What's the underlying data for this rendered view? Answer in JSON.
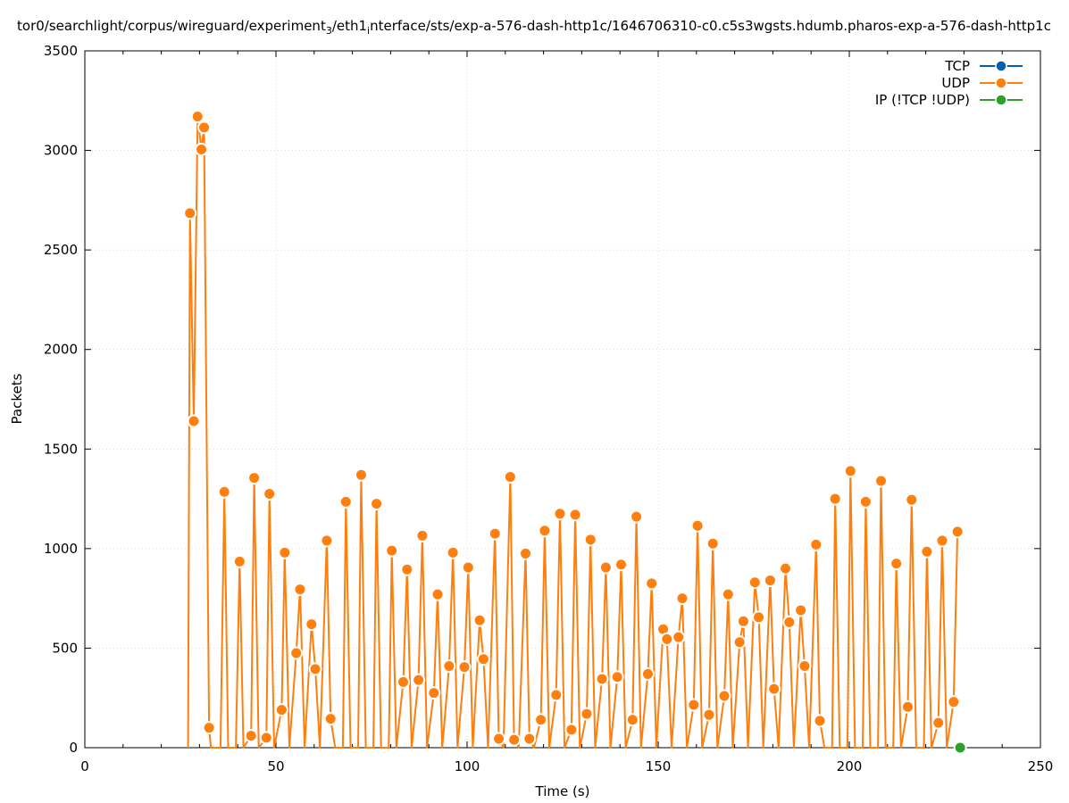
{
  "chart_data": {
    "type": "line",
    "title": "tor0/searchlight/corpus/wireguard/experiment_3/eth1_interface/sts/exp-a-576-dash-http1c/1646706310-c0.c5s3wgsts.hdumb.pharos-exp-a-576-dash-http1c",
    "title_segments": {
      "a": "tor0/searchlight/corpus/wireguard/experiment",
      "sub1": "3",
      "b": "/eth1",
      "sub2": "i",
      "c": "nterface/sts/exp-a-576-dash-http1c/1646706310-c0.c5s3wgsts.hdumb.pharos-exp-a-576-dash-http1c"
    },
    "xlabel": "Time (s)",
    "ylabel": "Packets",
    "xlim": [
      0,
      250
    ],
    "ylim": [
      0,
      3500
    ],
    "x_ticks": [
      "0",
      "50",
      "100",
      "150",
      "200",
      "250"
    ],
    "y_ticks": [
      "0",
      "500",
      "1000",
      "1500",
      "2000",
      "2500",
      "3000",
      "3500"
    ],
    "grid": true,
    "legend_position": "top-right",
    "series": [
      {
        "name": "TCP",
        "color": "#0060ad",
        "points": []
      },
      {
        "name": "UDP",
        "color": "#ff7f0e",
        "points": [
          [
            27,
            0
          ],
          [
            27.5,
            2685
          ],
          [
            28.5,
            1640
          ],
          [
            29.5,
            3170
          ],
          [
            30.5,
            3005
          ],
          [
            31.2,
            3115
          ],
          [
            32.5,
            100
          ],
          [
            33,
            0
          ],
          [
            35.5,
            0
          ],
          [
            36.5,
            1285
          ],
          [
            37.5,
            0
          ],
          [
            39.5,
            0
          ],
          [
            40.5,
            935
          ],
          [
            41.5,
            0
          ],
          [
            43.5,
            60
          ],
          [
            44.3,
            1355
          ],
          [
            45.5,
            0
          ],
          [
            47.5,
            50
          ],
          [
            48.3,
            1275
          ],
          [
            49.5,
            0
          ],
          [
            51.5,
            190
          ],
          [
            52.3,
            980
          ],
          [
            53.5,
            0
          ],
          [
            55.3,
            475
          ],
          [
            56.3,
            795
          ],
          [
            57.5,
            0
          ],
          [
            59.3,
            620
          ],
          [
            60.3,
            395
          ],
          [
            61.5,
            0
          ],
          [
            63.3,
            1040
          ],
          [
            64.3,
            145
          ],
          [
            65.5,
            0
          ],
          [
            67.5,
            0
          ],
          [
            68.3,
            1235
          ],
          [
            69.5,
            0
          ],
          [
            71.5,
            0
          ],
          [
            72.3,
            1370
          ],
          [
            73.5,
            0
          ],
          [
            75.5,
            0
          ],
          [
            76.3,
            1225
          ],
          [
            77.5,
            0
          ],
          [
            79.5,
            0
          ],
          [
            80.3,
            990
          ],
          [
            81.5,
            0
          ],
          [
            83.3,
            330
          ],
          [
            84.3,
            895
          ],
          [
            85.5,
            0
          ],
          [
            87.3,
            340
          ],
          [
            88.3,
            1065
          ],
          [
            89.5,
            0
          ],
          [
            91.3,
            275
          ],
          [
            92.3,
            770
          ],
          [
            93.5,
            0
          ],
          [
            95.3,
            410
          ],
          [
            96.3,
            980
          ],
          [
            97.5,
            0
          ],
          [
            99.3,
            405
          ],
          [
            100.3,
            905
          ],
          [
            101.5,
            0
          ],
          [
            103.3,
            640
          ],
          [
            104.3,
            445
          ],
          [
            105.5,
            0
          ],
          [
            107.3,
            1075
          ],
          [
            108.3,
            45
          ],
          [
            109.5,
            0
          ],
          [
            111.3,
            1360
          ],
          [
            112.3,
            40
          ],
          [
            113.5,
            0
          ],
          [
            115.3,
            975
          ],
          [
            116.3,
            45
          ],
          [
            117.5,
            0
          ],
          [
            119.3,
            140
          ],
          [
            120.3,
            1090
          ],
          [
            121.5,
            0
          ],
          [
            123.3,
            265
          ],
          [
            124.3,
            1175
          ],
          [
            125.5,
            0
          ],
          [
            127.3,
            90
          ],
          [
            128.3,
            1170
          ],
          [
            129.5,
            0
          ],
          [
            131.3,
            170
          ],
          [
            132.3,
            1045
          ],
          [
            133.5,
            0
          ],
          [
            135.3,
            345
          ],
          [
            136.3,
            905
          ],
          [
            137.5,
            0
          ],
          [
            139.3,
            355
          ],
          [
            140.3,
            920
          ],
          [
            141.5,
            0
          ],
          [
            143.3,
            140
          ],
          [
            144.3,
            1160
          ],
          [
            145.5,
            0
          ],
          [
            147.3,
            370
          ],
          [
            148.3,
            825
          ],
          [
            149.5,
            0
          ],
          [
            151.3,
            595
          ],
          [
            152.3,
            545
          ],
          [
            153.5,
            0
          ],
          [
            155.3,
            555
          ],
          [
            156.3,
            750
          ],
          [
            157.5,
            0
          ],
          [
            159.3,
            215
          ],
          [
            160.3,
            1115
          ],
          [
            161.5,
            0
          ],
          [
            163.3,
            165
          ],
          [
            164.3,
            1025
          ],
          [
            165.5,
            0
          ],
          [
            167.3,
            260
          ],
          [
            168.3,
            770
          ],
          [
            169.5,
            0
          ],
          [
            171.3,
            530
          ],
          [
            172.3,
            635
          ],
          [
            173.5,
            0
          ],
          [
            175.3,
            830
          ],
          [
            176.3,
            655
          ],
          [
            177.5,
            0
          ],
          [
            179.3,
            840
          ],
          [
            180.3,
            295
          ],
          [
            181.5,
            0
          ],
          [
            183.3,
            900
          ],
          [
            184.3,
            630
          ],
          [
            185.5,
            0
          ],
          [
            187.3,
            690
          ],
          [
            188.3,
            410
          ],
          [
            189.5,
            0
          ],
          [
            191.3,
            1020
          ],
          [
            192.3,
            135
          ],
          [
            193.5,
            0
          ],
          [
            195.5,
            0
          ],
          [
            196.3,
            1250
          ],
          [
            197.5,
            0
          ],
          [
            199.5,
            0
          ],
          [
            200.3,
            1390
          ],
          [
            201.5,
            0
          ],
          [
            203.5,
            0
          ],
          [
            204.3,
            1235
          ],
          [
            205.5,
            0
          ],
          [
            207.5,
            0
          ],
          [
            208.3,
            1340
          ],
          [
            209.5,
            0
          ],
          [
            211.5,
            0
          ],
          [
            212.3,
            925
          ],
          [
            213.5,
            0
          ],
          [
            215.3,
            205
          ],
          [
            216.3,
            1245
          ],
          [
            217.5,
            0
          ],
          [
            219.5,
            0
          ],
          [
            220.3,
            985
          ],
          [
            221.5,
            0
          ],
          [
            223.3,
            125
          ],
          [
            224.3,
            1040
          ],
          [
            225.5,
            0
          ],
          [
            227.3,
            230
          ],
          [
            228.3,
            1085
          ]
        ]
      },
      {
        "name": "IP (!TCP  !UDP)",
        "color": "#2ca02c",
        "points": [
          [
            229,
            0
          ]
        ]
      }
    ]
  }
}
